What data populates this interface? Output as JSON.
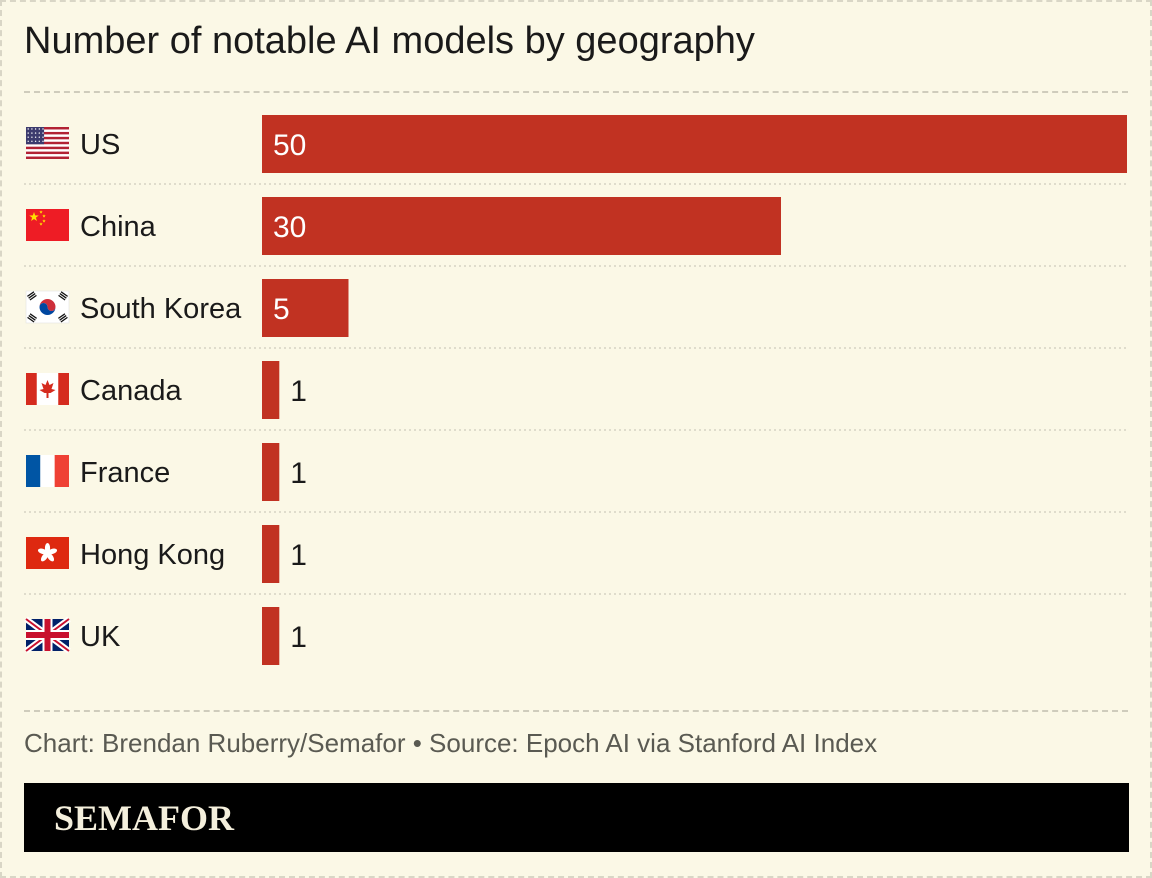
{
  "chart_data": {
    "type": "bar",
    "orientation": "horizontal",
    "title": "Number of notable AI models by geography",
    "categories": [
      "US",
      "China",
      "South Korea",
      "Canada",
      "France",
      "Hong Kong",
      "UK"
    ],
    "values": [
      50,
      30,
      5,
      1,
      1,
      1,
      1
    ],
    "category_icons": [
      "us-flag-icon",
      "china-flag-icon",
      "south-korea-flag-icon",
      "canada-flag-icon",
      "france-flag-icon",
      "hong-kong-flag-icon",
      "uk-flag-icon"
    ],
    "xlim": [
      0,
      50
    ],
    "bar_color": "#c13222",
    "label_inside_color": "#ffffff",
    "label_outside_color": "#1a1a1a",
    "grid": false
  },
  "source": "Chart: Brendan Ruberry/Semafor • Source: Epoch AI via Stanford AI Index",
  "brand": {
    "logo_text": "SEMAFOR",
    "bar_color": "#000000"
  },
  "colors": {
    "background": "#fbf8e6",
    "divider": "#cfccbc"
  }
}
